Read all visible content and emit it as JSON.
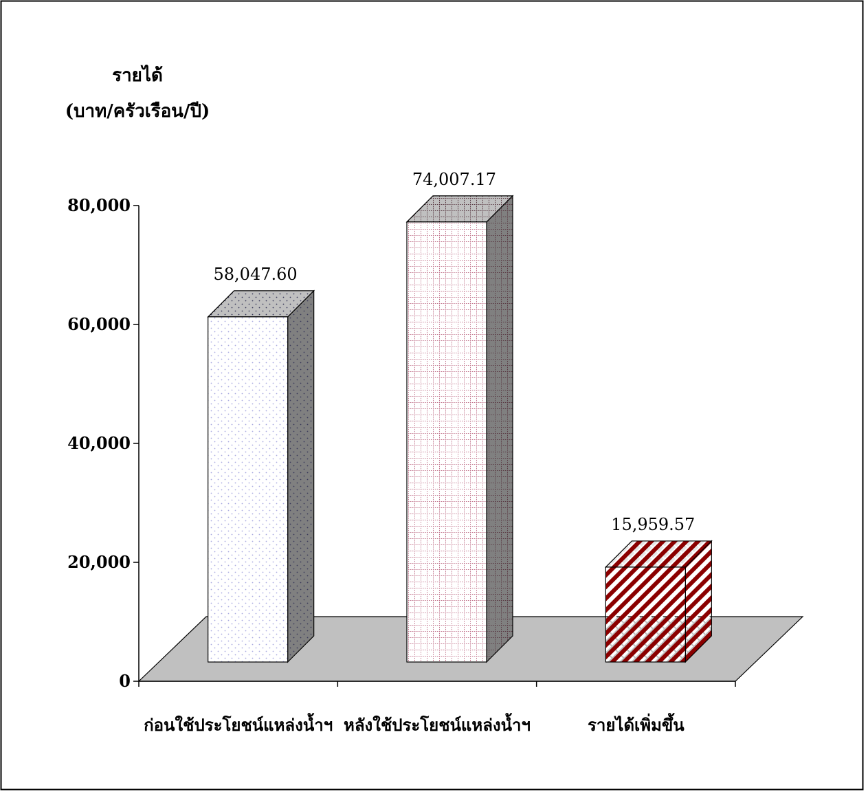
{
  "chart_data": {
    "type": "bar",
    "title": "",
    "ylabel": "รายได้",
    "ylabel_unit": "(บาท/ครัวเรือน/ปี)",
    "xlabel": "",
    "ylim": [
      0,
      80000
    ],
    "yticks": [
      0,
      20000,
      40000,
      60000,
      80000
    ],
    "ytick_labels": [
      "0",
      "20,000",
      "40,000",
      "60,000",
      "80,000"
    ],
    "categories": [
      "ก่อนใช้ประโยชน์แหล่งน้ำฯ",
      "หลังใช้ประโยชน์แหล่งน้ำฯ",
      "รายได้เพิ่มขึ้น"
    ],
    "values": [
      58047.6,
      74007.17,
      15959.57
    ],
    "value_labels": [
      "58,047.60",
      "74,007.17",
      "15,959.57"
    ],
    "bar_styles": [
      {
        "pattern": "dots",
        "fill": "#ffffff",
        "accent": "#a9a9e0"
      },
      {
        "pattern": "grid",
        "fill": "#ffffff",
        "accent": "#c2748c"
      },
      {
        "pattern": "diagonal",
        "fill": "#ffffff",
        "accent": "#8b0000"
      }
    ],
    "floor_color": "#c0c0c0",
    "side_color": "#808080",
    "top_color": "#c0c0c0",
    "grid": false,
    "legend": "none",
    "style": "3d"
  }
}
